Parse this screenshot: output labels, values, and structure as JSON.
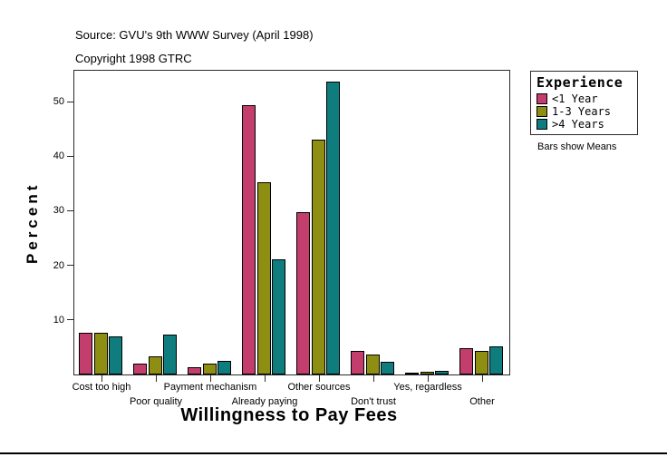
{
  "header": {
    "source_line": "Source: GVU's 9th WWW Survey (April 1998)",
    "copyright_line": "Copyright 1998 GTRC"
  },
  "chart_data": {
    "type": "bar",
    "title": "",
    "xlabel": "Willingness to Pay Fees",
    "ylabel": "Percent",
    "categories": [
      "Cost too high",
      "Poor quality",
      "Payment mechanism",
      "Already paying",
      "Other sources",
      "Don't trust",
      "Yes, regardless",
      "Other"
    ],
    "series": [
      {
        "name": "<1 Year",
        "color": "#c33e6c",
        "values": [
          7.6,
          2.0,
          1.4,
          49.4,
          29.7,
          4.4,
          0.3,
          4.8
        ]
      },
      {
        "name": "1-3 Years",
        "color": "#8e8e12",
        "values": [
          7.6,
          3.3,
          2.0,
          35.2,
          43.1,
          3.6,
          0.5,
          4.3
        ]
      },
      {
        "name": ">4 Years",
        "color": "#0f7d7d",
        "values": [
          6.9,
          7.3,
          2.5,
          21.1,
          53.6,
          2.4,
          0.7,
          5.1
        ]
      }
    ],
    "yticks": [
      10,
      20,
      30,
      40,
      50
    ],
    "ylim": [
      0,
      55.6
    ],
    "grid": false,
    "legend_position": "right",
    "bar_annotation": "Bars show Means"
  },
  "legend": {
    "title": "Experience",
    "entries": [
      {
        "label": "<1 Year",
        "color": "#c33e6c"
      },
      {
        "label": "1-3 Years",
        "color": "#8e8e12"
      },
      {
        "label": ">4 Years",
        "color": "#0f7d7d"
      }
    ],
    "note": "Bars show Means"
  }
}
